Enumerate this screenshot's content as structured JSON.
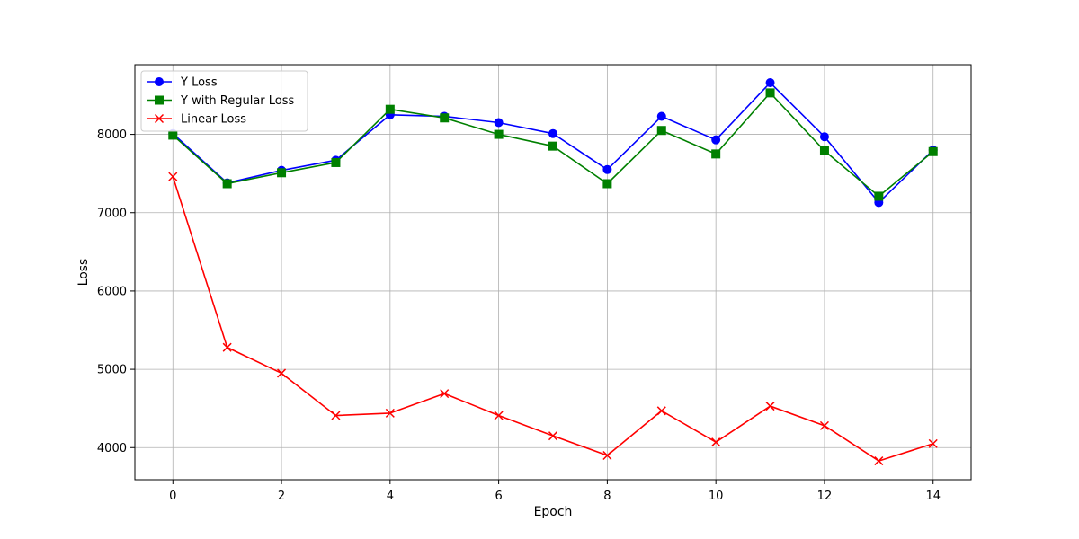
{
  "chart_data": {
    "type": "line",
    "title": "",
    "xlabel": "Epoch",
    "ylabel": "Loss",
    "x": [
      0,
      1,
      2,
      3,
      4,
      5,
      6,
      7,
      8,
      9,
      10,
      11,
      12,
      13,
      14
    ],
    "xlim": [
      -0.7,
      14.7
    ],
    "ylim": [
      3590,
      8890
    ],
    "xticks": [
      0,
      2,
      4,
      6,
      8,
      10,
      12,
      14
    ],
    "yticks": [
      4000,
      5000,
      6000,
      7000,
      8000
    ],
    "grid": true,
    "legend_position": "upper-left",
    "series": [
      {
        "name": "Y Loss",
        "color": "#0000ff",
        "marker": "circle",
        "values": [
          8010,
          7380,
          7540,
          7670,
          8250,
          8230,
          8150,
          8010,
          7550,
          8230,
          7930,
          8660,
          7970,
          7130,
          7800
        ]
      },
      {
        "name": "Y with Regular Loss",
        "color": "#008000",
        "marker": "square",
        "values": [
          7990,
          7370,
          7510,
          7640,
          8320,
          8210,
          8000,
          7850,
          7370,
          8050,
          7750,
          8530,
          7790,
          7210,
          7780
        ]
      },
      {
        "name": "Linear Loss",
        "color": "#ff0000",
        "marker": "x",
        "values": [
          7460,
          5280,
          4950,
          4410,
          4440,
          4690,
          4410,
          4150,
          3900,
          4470,
          4070,
          4530,
          4280,
          3830,
          4050
        ]
      }
    ]
  }
}
